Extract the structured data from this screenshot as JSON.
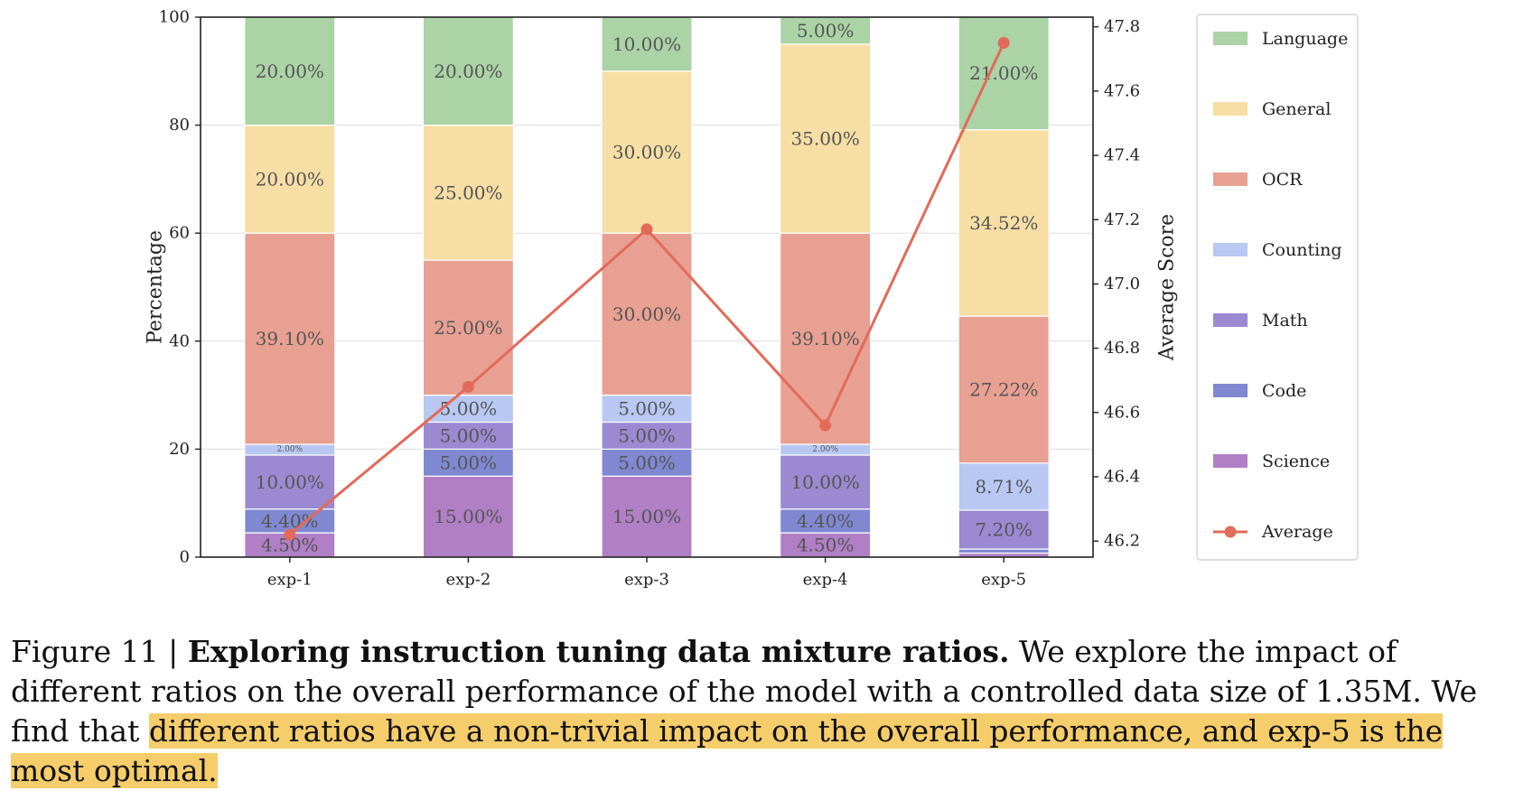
{
  "chart_data": {
    "type": "bar",
    "stacked": true,
    "categories": [
      "exp-1",
      "exp-2",
      "exp-3",
      "exp-4",
      "exp-5"
    ],
    "series": [
      {
        "name": "Science",
        "color": "#b07fc6",
        "values": [
          4.5,
          15.0,
          15.0,
          4.5,
          0.75
        ],
        "labels": [
          "4.50%",
          "15.00%",
          "15.00%",
          "4.50%",
          ""
        ]
      },
      {
        "name": "Code",
        "color": "#7f88d1",
        "values": [
          4.4,
          5.0,
          5.0,
          4.4,
          0.75
        ],
        "labels": [
          "4.40%",
          "5.00%",
          "5.00%",
          "4.40%",
          ""
        ]
      },
      {
        "name": "Math",
        "color": "#9b89d1",
        "values": [
          10.0,
          5.0,
          5.0,
          10.0,
          7.2
        ],
        "labels": [
          "10.00%",
          "5.00%",
          "5.00%",
          "10.00%",
          "7.20%"
        ]
      },
      {
        "name": "Counting",
        "color": "#b8c8f3",
        "values": [
          2.0,
          5.0,
          5.0,
          2.0,
          8.71
        ],
        "labels": [
          "2.00%",
          "5.00%",
          "5.00%",
          "2.00%",
          "8.71%"
        ]
      },
      {
        "name": "OCR",
        "color": "#e8a092",
        "values": [
          39.1,
          25.0,
          30.0,
          39.1,
          27.22
        ],
        "labels": [
          "39.10%",
          "25.00%",
          "30.00%",
          "39.10%",
          "27.22%"
        ]
      },
      {
        "name": "General",
        "color": "#f7dea5",
        "values": [
          20.0,
          25.0,
          30.0,
          35.0,
          34.52
        ],
        "labels": [
          "20.00%",
          "25.00%",
          "30.00%",
          "35.00%",
          "34.52%"
        ]
      },
      {
        "name": "Language",
        "color": "#abd3a6",
        "values": [
          20.0,
          20.0,
          10.0,
          5.0,
          21.0
        ],
        "labels": [
          "20.00%",
          "20.00%",
          "10.00%",
          "5.00%",
          "21.00%"
        ]
      }
    ],
    "line_series": {
      "name": "Average",
      "color": "#e26a5a",
      "values": [
        46.22,
        46.68,
        47.17,
        46.56,
        47.75
      ]
    },
    "ylabel": "Percentage",
    "ylabel_right": "Average Score",
    "ylim": [
      0,
      100
    ],
    "ylim_right": [
      46.15,
      47.83
    ],
    "yticks": [
      "0",
      "20",
      "40",
      "60",
      "80",
      "100"
    ],
    "yticks_right": [
      "46.2",
      "46.4",
      "46.6",
      "46.8",
      "47.0",
      "47.2",
      "47.4",
      "47.6",
      "47.8"
    ],
    "grid": true,
    "legend_position": "right",
    "legend_order": [
      "Language",
      "General",
      "OCR",
      "Counting",
      "Math",
      "Code",
      "Science",
      "Average"
    ]
  },
  "caption": {
    "prefix": "Figure 11 | ",
    "title": "Exploring instruction tuning data mixture ratios.",
    "body": " We explore the impact of different ratios on the overall performance of the model with a controlled data size of 1.35M. We find that ",
    "highlight": "different ratios have a non-trivial impact on the overall performance, and exp-5 is the most optimal."
  }
}
